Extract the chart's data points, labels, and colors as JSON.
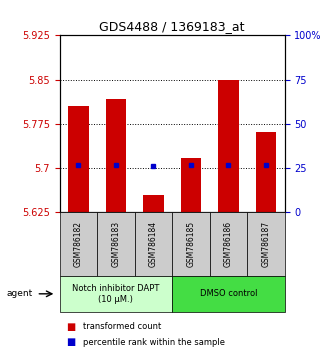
{
  "title": "GDS4488 / 1369183_at",
  "samples": [
    "GSM786182",
    "GSM786183",
    "GSM786184",
    "GSM786185",
    "GSM786186",
    "GSM786187"
  ],
  "red_values": [
    5.806,
    5.817,
    5.655,
    5.718,
    5.85,
    5.762
  ],
  "blue_values": [
    5.705,
    5.706,
    5.703,
    5.706,
    5.705,
    5.706
  ],
  "ylim": [
    5.625,
    5.925
  ],
  "yticks_left": [
    5.625,
    5.7,
    5.775,
    5.85,
    5.925
  ],
  "yticks_right_vals": [
    5.625,
    5.7,
    5.775,
    5.85,
    5.925
  ],
  "yticks_right_labels": [
    "0",
    "25",
    "50",
    "75",
    "100%"
  ],
  "hlines": [
    5.7,
    5.775,
    5.85
  ],
  "bar_color": "#cc0000",
  "dot_color": "#0000cc",
  "bar_bottom": 5.625,
  "group1_label": "Notch inhibitor DAPT\n(10 μM.)",
  "group2_label": "DMSO control",
  "group1_color": "#ccffcc",
  "group2_color": "#44dd44",
  "agent_label": "agent",
  "bar_width": 0.55,
  "left_tick_color": "#cc0000",
  "right_tick_color": "#0000cc",
  "legend_red": "transformed count",
  "legend_blue": "percentile rank within the sample",
  "title_fontsize": 9,
  "tick_fontsize": 7,
  "sample_fontsize": 5.5,
  "group_fontsize": 6,
  "legend_fontsize": 6
}
